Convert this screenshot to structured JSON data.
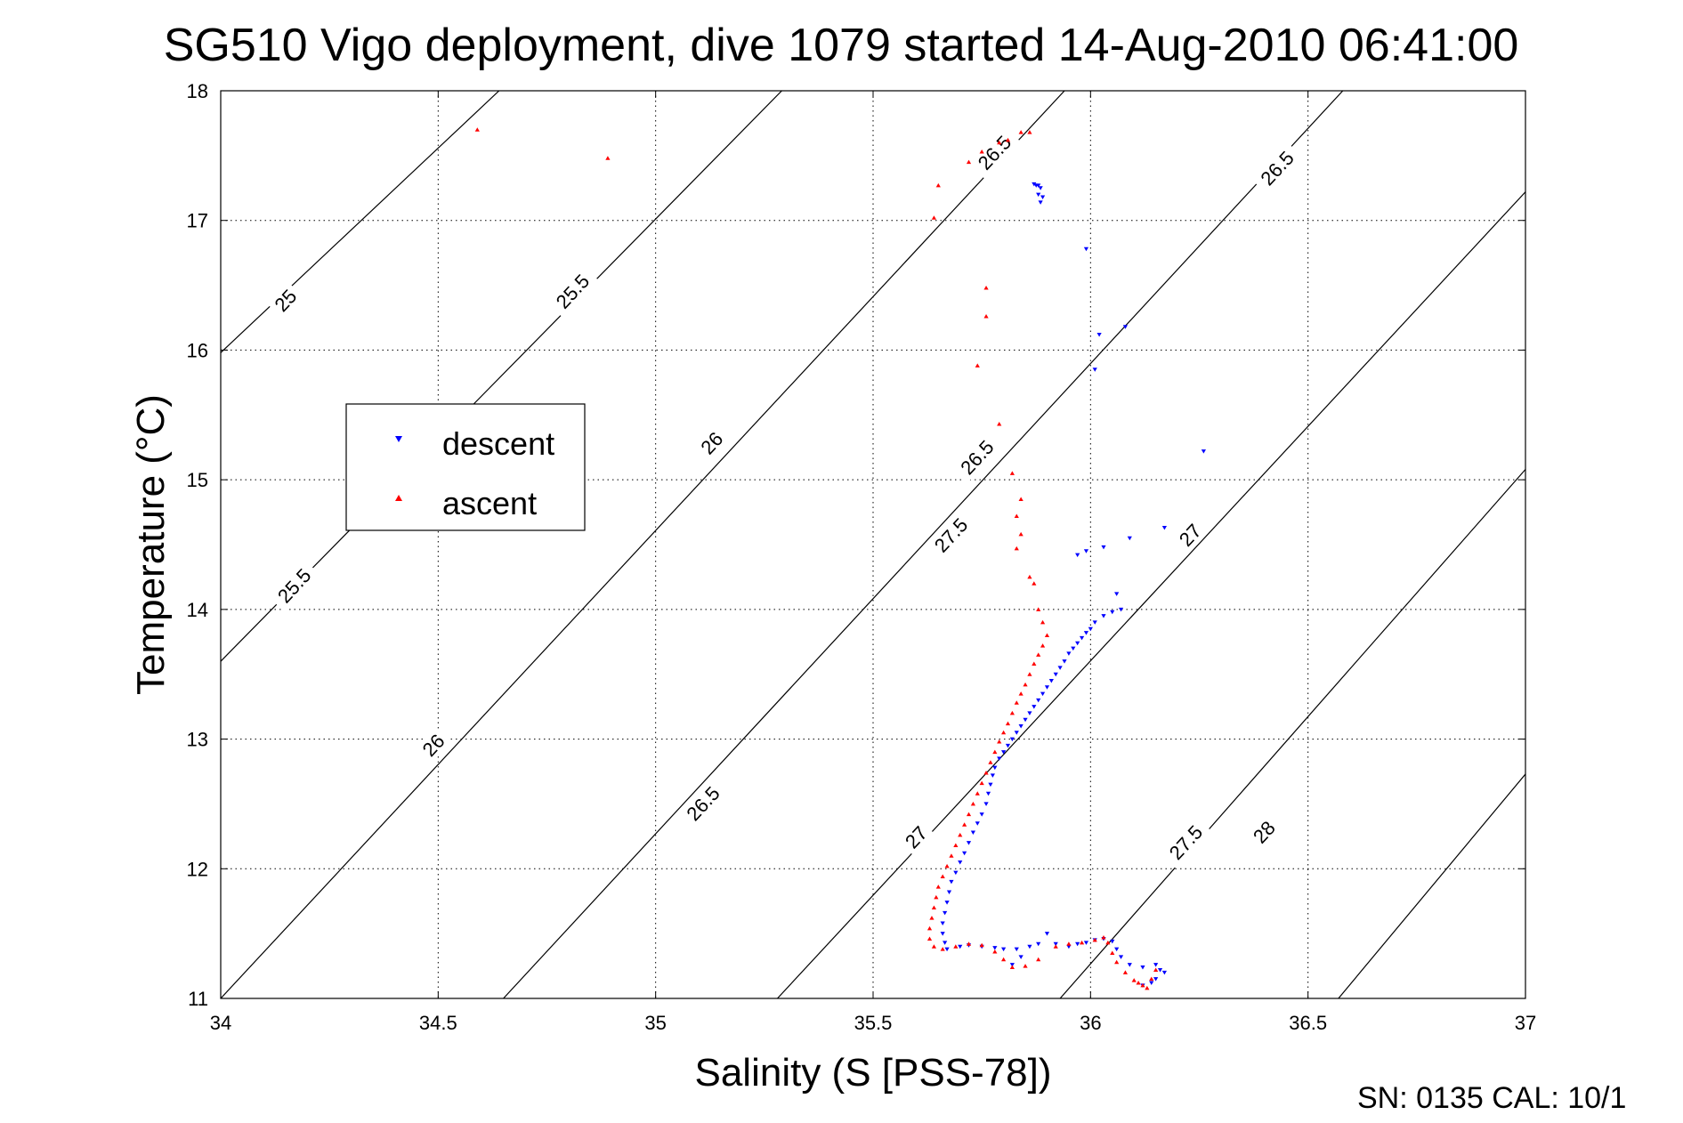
{
  "chart_data": {
    "type": "scatter",
    "title": "SG510 Vigo deployment, dive 1079 started 14-Aug-2010 06:41:00",
    "xlabel": "Salinity (S [PSS-78])",
    "ylabel": "Temperature (°C)",
    "xlim": [
      34,
      37
    ],
    "ylim": [
      11,
      18
    ],
    "xticks": [
      34,
      34.5,
      35,
      35.5,
      36,
      36.5,
      37
    ],
    "yticks": [
      11,
      12,
      13,
      14,
      15,
      16,
      17,
      18
    ],
    "xtick_labels": [
      "34",
      "34.5",
      "35",
      "35.5",
      "36",
      "36.5",
      "37"
    ],
    "ytick_labels": [
      "11",
      "12",
      "13",
      "14",
      "15",
      "16",
      "17",
      "18"
    ],
    "grid": true,
    "legend": {
      "position": "left",
      "entries": [
        "descent",
        "ascent"
      ]
    },
    "footer": "SN: 0135  CAL: 10/1",
    "density_contours": [
      {
        "sigma": 25,
        "label": "25",
        "line": [
          [
            34.0,
            15.98
          ],
          [
            34.64,
            18.0
          ]
        ]
      },
      {
        "sigma": 25.5,
        "label": "25.5",
        "line": [
          [
            34.0,
            13.6
          ],
          [
            35.29,
            18.0
          ]
        ]
      },
      {
        "sigma": 26,
        "label": "26",
        "line": [
          [
            34.0,
            11.0
          ],
          [
            35.94,
            18.0
          ]
        ]
      },
      {
        "sigma": 26.5,
        "label": "26.5",
        "line": [
          [
            34.65,
            11.0
          ],
          [
            36.58,
            18.0
          ]
        ]
      },
      {
        "sigma": 27,
        "label": "27",
        "line": [
          [
            35.28,
            11.0
          ],
          [
            37.0,
            17.22
          ]
        ]
      },
      {
        "sigma": 27.5,
        "label": "27.5",
        "line": [
          [
            35.93,
            11.0
          ],
          [
            37.0,
            15.08
          ]
        ]
      },
      {
        "sigma": 28,
        "label": "28",
        "line": [
          [
            36.57,
            11.0
          ],
          [
            37.0,
            12.73
          ]
        ]
      }
    ],
    "contour_labels": [
      {
        "text": "25",
        "x": 34.15,
        "y": 16.38
      },
      {
        "text": "25.5",
        "x": 34.81,
        "y": 16.45
      },
      {
        "text": "26",
        "x": 35.13,
        "y": 15.28
      },
      {
        "text": "26.5",
        "x": 35.78,
        "y": 17.52
      },
      {
        "text": "25.5",
        "x": 34.17,
        "y": 14.18
      },
      {
        "text": "26.5",
        "x": 35.74,
        "y": 15.17
      },
      {
        "text": "26.5",
        "x": 36.43,
        "y": 17.4
      },
      {
        "text": "26",
        "x": 34.49,
        "y": 12.95
      },
      {
        "text": "26.5",
        "x": 35.11,
        "y": 12.5
      },
      {
        "text": "27",
        "x": 36.23,
        "y": 14.57
      },
      {
        "text": "27",
        "x": 37.22,
        "y": 16.84
      },
      {
        "text": "27",
        "x": 35.6,
        "y": 12.24
      },
      {
        "text": "27.5",
        "x": 35.68,
        "y": 14.57
      },
      {
        "text": "27.5",
        "x": 36.22,
        "y": 12.2
      },
      {
        "text": "28",
        "x": 36.4,
        "y": 12.28
      }
    ],
    "series": [
      {
        "name": "descent",
        "color": "#0000ff",
        "marker": "triangle-down",
        "points": [
          [
            35.87,
            17.28
          ],
          [
            35.875,
            17.27
          ],
          [
            35.88,
            17.27
          ],
          [
            35.885,
            17.25
          ],
          [
            35.88,
            17.2
          ],
          [
            35.89,
            17.18
          ],
          [
            35.885,
            17.14
          ],
          [
            35.99,
            16.78
          ],
          [
            36.08,
            16.18
          ],
          [
            36.02,
            16.12
          ],
          [
            36.01,
            15.85
          ],
          [
            36.26,
            15.22
          ],
          [
            36.17,
            14.63
          ],
          [
            36.09,
            14.55
          ],
          [
            36.03,
            14.48
          ],
          [
            35.99,
            14.45
          ],
          [
            35.97,
            14.42
          ],
          [
            36.06,
            14.12
          ],
          [
            36.07,
            14.0
          ],
          [
            36.05,
            13.98
          ],
          [
            36.03,
            13.95
          ],
          [
            36.01,
            13.9
          ],
          [
            36.0,
            13.85
          ],
          [
            35.99,
            13.82
          ],
          [
            35.98,
            13.78
          ],
          [
            35.97,
            13.74
          ],
          [
            35.96,
            13.7
          ],
          [
            35.95,
            13.66
          ],
          [
            35.94,
            13.6
          ],
          [
            35.93,
            13.55
          ],
          [
            35.92,
            13.5
          ],
          [
            35.91,
            13.45
          ],
          [
            35.9,
            13.4
          ],
          [
            35.89,
            13.35
          ],
          [
            35.88,
            13.3
          ],
          [
            35.87,
            13.25
          ],
          [
            35.86,
            13.2
          ],
          [
            35.85,
            13.15
          ],
          [
            35.84,
            13.1
          ],
          [
            35.83,
            13.05
          ],
          [
            35.82,
            13.0
          ],
          [
            35.81,
            12.95
          ],
          [
            35.8,
            12.9
          ],
          [
            35.79,
            12.85
          ],
          [
            35.78,
            12.78
          ],
          [
            35.775,
            12.72
          ],
          [
            35.77,
            12.65
          ],
          [
            35.765,
            12.58
          ],
          [
            35.76,
            12.5
          ],
          [
            35.75,
            12.42
          ],
          [
            35.74,
            12.35
          ],
          [
            35.73,
            12.28
          ],
          [
            35.72,
            12.2
          ],
          [
            35.71,
            12.12
          ],
          [
            35.7,
            12.05
          ],
          [
            35.69,
            11.97
          ],
          [
            35.68,
            11.9
          ],
          [
            35.675,
            11.82
          ],
          [
            35.67,
            11.74
          ],
          [
            35.665,
            11.66
          ],
          [
            35.66,
            11.58
          ],
          [
            35.66,
            11.5
          ],
          [
            35.665,
            11.43
          ],
          [
            35.67,
            11.38
          ],
          [
            35.7,
            11.4
          ],
          [
            35.72,
            11.41
          ],
          [
            35.75,
            11.4
          ],
          [
            35.78,
            11.39
          ],
          [
            35.8,
            11.38
          ],
          [
            35.83,
            11.38
          ],
          [
            35.86,
            11.4
          ],
          [
            35.88,
            11.42
          ],
          [
            35.9,
            11.5
          ],
          [
            35.92,
            11.42
          ],
          [
            35.95,
            11.4
          ],
          [
            35.97,
            11.42
          ],
          [
            35.99,
            11.43
          ],
          [
            36.01,
            11.45
          ],
          [
            36.03,
            11.46
          ],
          [
            36.05,
            11.44
          ],
          [
            36.06,
            11.38
          ],
          [
            36.07,
            11.32
          ],
          [
            36.09,
            11.26
          ],
          [
            36.12,
            11.24
          ],
          [
            36.15,
            11.26
          ],
          [
            36.16,
            11.22
          ],
          [
            36.17,
            11.2
          ],
          [
            36.15,
            11.15
          ],
          [
            36.14,
            11.12
          ],
          [
            36.12,
            11.1
          ],
          [
            35.84,
            11.32
          ],
          [
            35.82,
            11.26
          ]
        ]
      },
      {
        "name": "ascent",
        "color": "#ff0000",
        "marker": "triangle-up",
        "points": [
          [
            34.59,
            17.7
          ],
          [
            34.89,
            17.48
          ],
          [
            35.86,
            17.68
          ],
          [
            35.84,
            17.68
          ],
          [
            35.81,
            17.62
          ],
          [
            35.79,
            17.6
          ],
          [
            35.75,
            17.53
          ],
          [
            35.72,
            17.45
          ],
          [
            35.65,
            17.27
          ],
          [
            35.64,
            17.02
          ],
          [
            35.76,
            16.48
          ],
          [
            35.76,
            16.26
          ],
          [
            35.74,
            15.88
          ],
          [
            35.79,
            15.43
          ],
          [
            35.82,
            15.05
          ],
          [
            35.84,
            14.85
          ],
          [
            35.83,
            14.72
          ],
          [
            35.84,
            14.58
          ],
          [
            35.83,
            14.47
          ],
          [
            35.86,
            14.25
          ],
          [
            35.87,
            14.2
          ],
          [
            35.88,
            14.0
          ],
          [
            35.89,
            13.9
          ],
          [
            35.9,
            13.8
          ],
          [
            35.89,
            13.72
          ],
          [
            35.88,
            13.65
          ],
          [
            35.87,
            13.58
          ],
          [
            35.86,
            13.5
          ],
          [
            35.85,
            13.42
          ],
          [
            35.84,
            13.35
          ],
          [
            35.83,
            13.28
          ],
          [
            35.82,
            13.2
          ],
          [
            35.81,
            13.12
          ],
          [
            35.8,
            13.05
          ],
          [
            35.79,
            12.98
          ],
          [
            35.78,
            12.9
          ],
          [
            35.77,
            12.82
          ],
          [
            35.76,
            12.74
          ],
          [
            35.75,
            12.66
          ],
          [
            35.74,
            12.58
          ],
          [
            35.73,
            12.5
          ],
          [
            35.72,
            12.42
          ],
          [
            35.71,
            12.34
          ],
          [
            35.7,
            12.26
          ],
          [
            35.69,
            12.18
          ],
          [
            35.68,
            12.1
          ],
          [
            35.67,
            12.02
          ],
          [
            35.66,
            11.94
          ],
          [
            35.65,
            11.86
          ],
          [
            35.645,
            11.78
          ],
          [
            35.64,
            11.7
          ],
          [
            35.635,
            11.62
          ],
          [
            35.63,
            11.54
          ],
          [
            35.63,
            11.46
          ],
          [
            35.64,
            11.4
          ],
          [
            35.66,
            11.38
          ],
          [
            35.69,
            11.4
          ],
          [
            35.72,
            11.42
          ],
          [
            35.75,
            11.41
          ],
          [
            35.78,
            11.36
          ],
          [
            35.8,
            11.3
          ],
          [
            35.82,
            11.24
          ],
          [
            35.85,
            11.25
          ],
          [
            35.88,
            11.3
          ],
          [
            35.92,
            11.4
          ],
          [
            35.95,
            11.42
          ],
          [
            35.98,
            11.43
          ],
          [
            36.01,
            11.45
          ],
          [
            36.03,
            11.47
          ],
          [
            36.04,
            11.43
          ],
          [
            36.05,
            11.35
          ],
          [
            36.06,
            11.28
          ],
          [
            36.08,
            11.2
          ],
          [
            36.1,
            11.14
          ],
          [
            36.12,
            11.1
          ],
          [
            36.14,
            11.15
          ],
          [
            36.15,
            11.22
          ],
          [
            36.13,
            11.08
          ],
          [
            36.11,
            11.12
          ]
        ]
      }
    ]
  }
}
